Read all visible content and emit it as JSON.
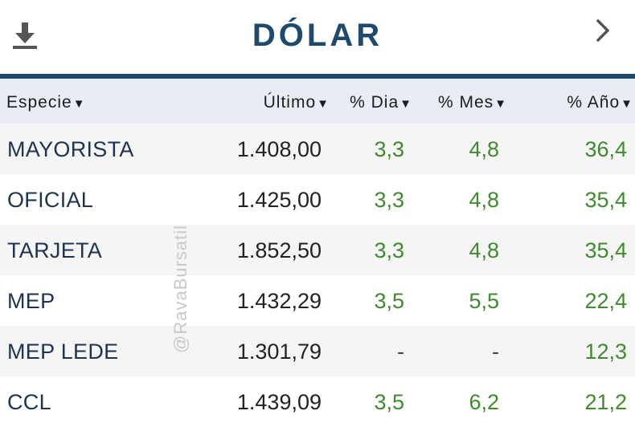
{
  "header": {
    "title": "DÓLAR",
    "download_icon": "download-icon",
    "next_icon": "chevron-right-icon"
  },
  "table": {
    "columns": [
      {
        "label": "Especie",
        "sort_icon": "▼"
      },
      {
        "label": "Último",
        "sort_icon": "▼"
      },
      {
        "label": "% Dia",
        "sort_icon": "▼"
      },
      {
        "label": "% Mes",
        "sort_icon": "▼"
      },
      {
        "label": "% Año",
        "sort_icon": "▼"
      }
    ],
    "rows": [
      {
        "especie": "MAYORISTA",
        "ultimo": "1.408,00",
        "dia": "3,3",
        "mes": "4,8",
        "anio": "36,4"
      },
      {
        "especie": "OFICIAL",
        "ultimo": "1.425,00",
        "dia": "3,3",
        "mes": "4,8",
        "anio": "35,4"
      },
      {
        "especie": "TARJETA",
        "ultimo": "1.852,50",
        "dia": "3,3",
        "mes": "4,8",
        "anio": "35,4"
      },
      {
        "especie": "MEP",
        "ultimo": "1.432,29",
        "dia": "3,5",
        "mes": "5,5",
        "anio": "22,4"
      },
      {
        "especie": "MEP LEDE",
        "ultimo": "1.301,79",
        "dia": "-",
        "mes": "-",
        "anio": "12,3"
      },
      {
        "especie": "CCL",
        "ultimo": "1.439,09",
        "dia": "3,5",
        "mes": "6,2",
        "anio": "21,2"
      }
    ]
  },
  "watermark": "@RavaBursatil",
  "colors": {
    "brand": "#1e4a6e",
    "positive": "#3f8a2e",
    "header_bg": "#e8ecf4"
  }
}
